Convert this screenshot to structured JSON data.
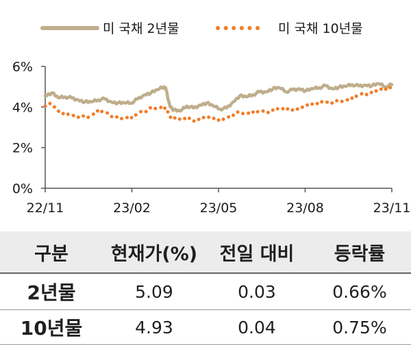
{
  "chart_data": {
    "type": "line",
    "x_ticks": [
      "22/11",
      "23/02",
      "23/05",
      "23/08",
      "23/11"
    ],
    "y_ticks": [
      "0%",
      "2%",
      "4%",
      "6%"
    ],
    "ylim": [
      0,
      6
    ],
    "grid": false,
    "legend_position": "top",
    "series": [
      {
        "name": "미 국채 2년물",
        "color": "#bfae8c",
        "style": "solid",
        "points": [
          [
            "2022-11-01",
            4.55
          ],
          [
            "2022-11-08",
            4.7
          ],
          [
            "2022-11-15",
            4.45
          ],
          [
            "2022-11-22",
            4.5
          ],
          [
            "2022-11-29",
            4.45
          ],
          [
            "2022-12-06",
            4.35
          ],
          [
            "2022-12-13",
            4.25
          ],
          [
            "2022-12-20",
            4.25
          ],
          [
            "2022-12-27",
            4.35
          ],
          [
            "2023-01-03",
            4.4
          ],
          [
            "2023-01-10",
            4.25
          ],
          [
            "2023-01-17",
            4.2
          ],
          [
            "2023-01-24",
            4.2
          ],
          [
            "2023-01-31",
            4.2
          ],
          [
            "2023-02-07",
            4.4
          ],
          [
            "2023-02-14",
            4.6
          ],
          [
            "2023-02-21",
            4.7
          ],
          [
            "2023-02-28",
            4.85
          ],
          [
            "2023-03-07",
            5.0
          ],
          [
            "2023-03-09",
            4.85
          ],
          [
            "2023-03-13",
            4.05
          ],
          [
            "2023-03-17",
            3.85
          ],
          [
            "2023-03-24",
            3.8
          ],
          [
            "2023-03-31",
            4.05
          ],
          [
            "2023-04-07",
            3.95
          ],
          [
            "2023-04-14",
            4.1
          ],
          [
            "2023-04-21",
            4.2
          ],
          [
            "2023-04-28",
            4.05
          ],
          [
            "2023-05-05",
            3.9
          ],
          [
            "2023-05-12",
            3.95
          ],
          [
            "2023-05-19",
            4.25
          ],
          [
            "2023-05-26",
            4.55
          ],
          [
            "2023-06-02",
            4.5
          ],
          [
            "2023-06-09",
            4.6
          ],
          [
            "2023-06-16",
            4.75
          ],
          [
            "2023-06-23",
            4.75
          ],
          [
            "2023-06-30",
            4.9
          ],
          [
            "2023-07-07",
            4.95
          ],
          [
            "2023-07-14",
            4.75
          ],
          [
            "2023-07-21",
            4.85
          ],
          [
            "2023-07-28",
            4.9
          ],
          [
            "2023-08-04",
            4.8
          ],
          [
            "2023-08-11",
            4.9
          ],
          [
            "2023-08-18",
            4.95
          ],
          [
            "2023-08-25",
            5.05
          ],
          [
            "2023-09-01",
            4.9
          ],
          [
            "2023-09-08",
            4.98
          ],
          [
            "2023-09-15",
            5.02
          ],
          [
            "2023-09-22",
            5.1
          ],
          [
            "2023-09-29",
            5.04
          ],
          [
            "2023-10-06",
            5.08
          ],
          [
            "2023-10-13",
            5.05
          ],
          [
            "2023-10-20",
            5.15
          ],
          [
            "2023-10-27",
            5.0
          ],
          [
            "2023-11-03",
            5.1
          ]
        ]
      },
      {
        "name": "미 국채 10년물",
        "color": "#f07d2a",
        "style": "dotted",
        "points": [
          [
            "2022-11-01",
            4.05
          ],
          [
            "2022-11-08",
            4.15
          ],
          [
            "2022-11-15",
            3.8
          ],
          [
            "2022-11-22",
            3.7
          ],
          [
            "2022-11-29",
            3.6
          ],
          [
            "2022-12-06",
            3.5
          ],
          [
            "2022-12-13",
            3.5
          ],
          [
            "2022-12-20",
            3.6
          ],
          [
            "2022-12-27",
            3.85
          ],
          [
            "2023-01-03",
            3.75
          ],
          [
            "2023-01-10",
            3.55
          ],
          [
            "2023-01-17",
            3.45
          ],
          [
            "2023-01-24",
            3.5
          ],
          [
            "2023-01-31",
            3.45
          ],
          [
            "2023-02-07",
            3.65
          ],
          [
            "2023-02-14",
            3.8
          ],
          [
            "2023-02-21",
            3.95
          ],
          [
            "2023-02-28",
            3.95
          ],
          [
            "2023-03-07",
            3.95
          ],
          [
            "2023-03-09",
            3.85
          ],
          [
            "2023-03-13",
            3.55
          ],
          [
            "2023-03-17",
            3.45
          ],
          [
            "2023-03-24",
            3.4
          ],
          [
            "2023-03-31",
            3.5
          ],
          [
            "2023-04-07",
            3.3
          ],
          [
            "2023-04-14",
            3.45
          ],
          [
            "2023-04-21",
            3.5
          ],
          [
            "2023-04-28",
            3.45
          ],
          [
            "2023-05-05",
            3.4
          ],
          [
            "2023-05-12",
            3.45
          ],
          [
            "2023-05-19",
            3.6
          ],
          [
            "2023-05-26",
            3.75
          ],
          [
            "2023-06-02",
            3.7
          ],
          [
            "2023-06-09",
            3.75
          ],
          [
            "2023-06-16",
            3.75
          ],
          [
            "2023-06-23",
            3.75
          ],
          [
            "2023-06-30",
            3.85
          ],
          [
            "2023-07-07",
            3.95
          ],
          [
            "2023-07-14",
            3.85
          ],
          [
            "2023-07-21",
            3.85
          ],
          [
            "2023-07-28",
            3.95
          ],
          [
            "2023-08-04",
            4.05
          ],
          [
            "2023-08-11",
            4.15
          ],
          [
            "2023-08-18",
            4.25
          ],
          [
            "2023-08-25",
            4.25
          ],
          [
            "2023-09-01",
            4.2
          ],
          [
            "2023-09-08",
            4.3
          ],
          [
            "2023-09-15",
            4.35
          ],
          [
            "2023-09-22",
            4.45
          ],
          [
            "2023-09-29",
            4.58
          ],
          [
            "2023-10-06",
            4.65
          ],
          [
            "2023-10-13",
            4.7
          ],
          [
            "2023-10-20",
            4.9
          ],
          [
            "2023-10-27",
            4.85
          ],
          [
            "2023-11-03",
            4.95
          ]
        ]
      }
    ]
  },
  "table": {
    "headers": [
      "구분",
      "현재가(%)",
      "전일 대비",
      "등락률"
    ],
    "rows": [
      [
        "2년물",
        "5.09",
        "0.03",
        "0.66%"
      ],
      [
        "10년물",
        "4.93",
        "0.04",
        "0.75%"
      ]
    ]
  }
}
